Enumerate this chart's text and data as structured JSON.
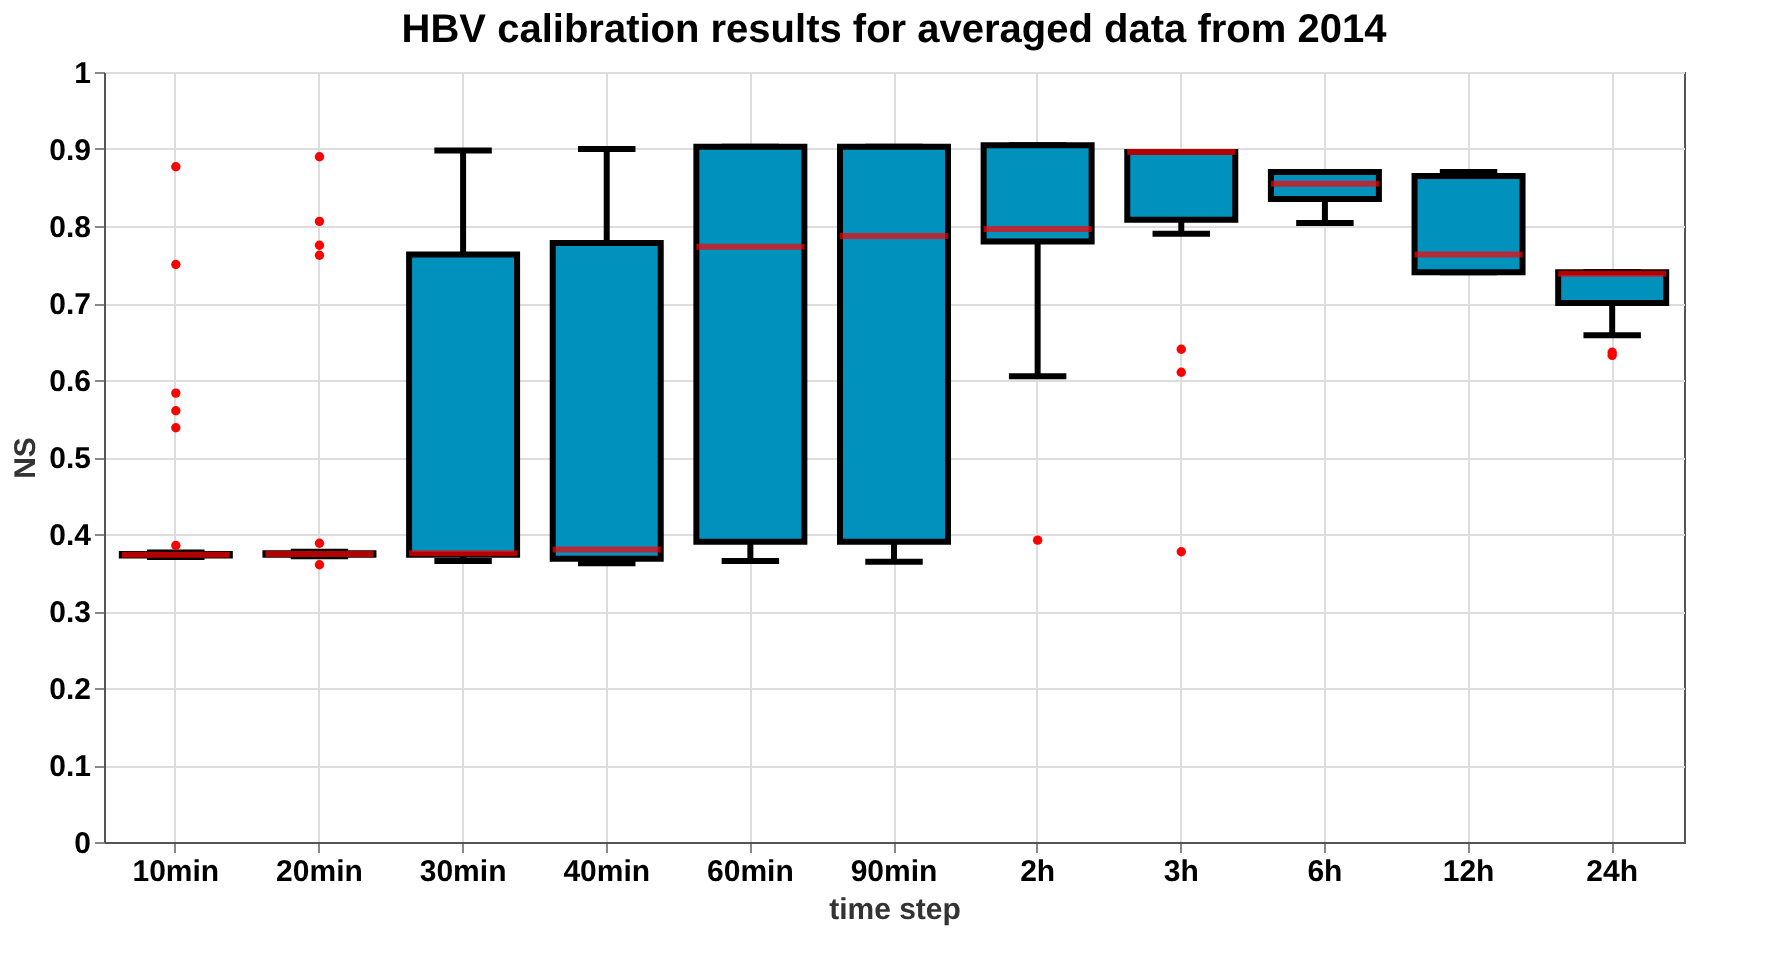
{
  "chart_data": {
    "type": "box",
    "title": "HBV calibration results for averaged data from 2014",
    "xlabel": "time step",
    "ylabel": "NS",
    "categories": [
      "10min",
      "20min",
      "30min",
      "40min",
      "60min",
      "90min",
      "2h",
      "3h",
      "6h",
      "12h",
      "24h"
    ],
    "ylim": [
      0,
      1
    ],
    "yticks": [
      0,
      0.1,
      0.2,
      0.3,
      0.4,
      0.5,
      0.6,
      0.7,
      0.8,
      0.9,
      1
    ],
    "grid": true,
    "series": [
      {
        "color": "#0091bd",
        "boxes": [
          {
            "low": 0.37,
            "q1": 0.372,
            "median": 0.373,
            "q3": 0.374,
            "high": 0.376,
            "outliers": [
              0.877,
              0.75,
              0.583,
              0.56,
              0.538,
              0.385
            ]
          },
          {
            "low": 0.371,
            "q1": 0.373,
            "median": 0.374,
            "q3": 0.375,
            "high": 0.377,
            "outliers": [
              0.89,
              0.806,
              0.775,
              0.762,
              0.388,
              0.36
            ]
          },
          {
            "low": 0.365,
            "q1": 0.373,
            "median": 0.375,
            "q3": 0.763,
            "high": 0.898
          },
          {
            "low": 0.362,
            "q1": 0.368,
            "median": 0.38,
            "q3": 0.778,
            "high": 0.9
          },
          {
            "low": 0.365,
            "q1": 0.39,
            "median": 0.773,
            "q3": 0.903,
            "high": 0.903
          },
          {
            "low": 0.364,
            "q1": 0.39,
            "median": 0.787,
            "q3": 0.903,
            "high": 0.903
          },
          {
            "low": 0.605,
            "q1": 0.78,
            "median": 0.796,
            "q3": 0.905,
            "high": 0.905,
            "outliers": [
              0.392
            ]
          },
          {
            "low": 0.79,
            "q1": 0.808,
            "median": 0.896,
            "q3": 0.896,
            "high": 0.896,
            "outliers": [
              0.64,
              0.61,
              0.377
            ]
          },
          {
            "low": 0.804,
            "q1": 0.835,
            "median": 0.855,
            "q3": 0.87,
            "high": 0.87
          },
          {
            "low": 0.74,
            "q1": 0.74,
            "median": 0.763,
            "q3": 0.865,
            "high": 0.87
          },
          {
            "low": 0.658,
            "q1": 0.7,
            "median": 0.738,
            "q3": 0.74,
            "high": 0.74,
            "outliers": [
              0.636,
              0.632
            ]
          }
        ]
      }
    ]
  }
}
